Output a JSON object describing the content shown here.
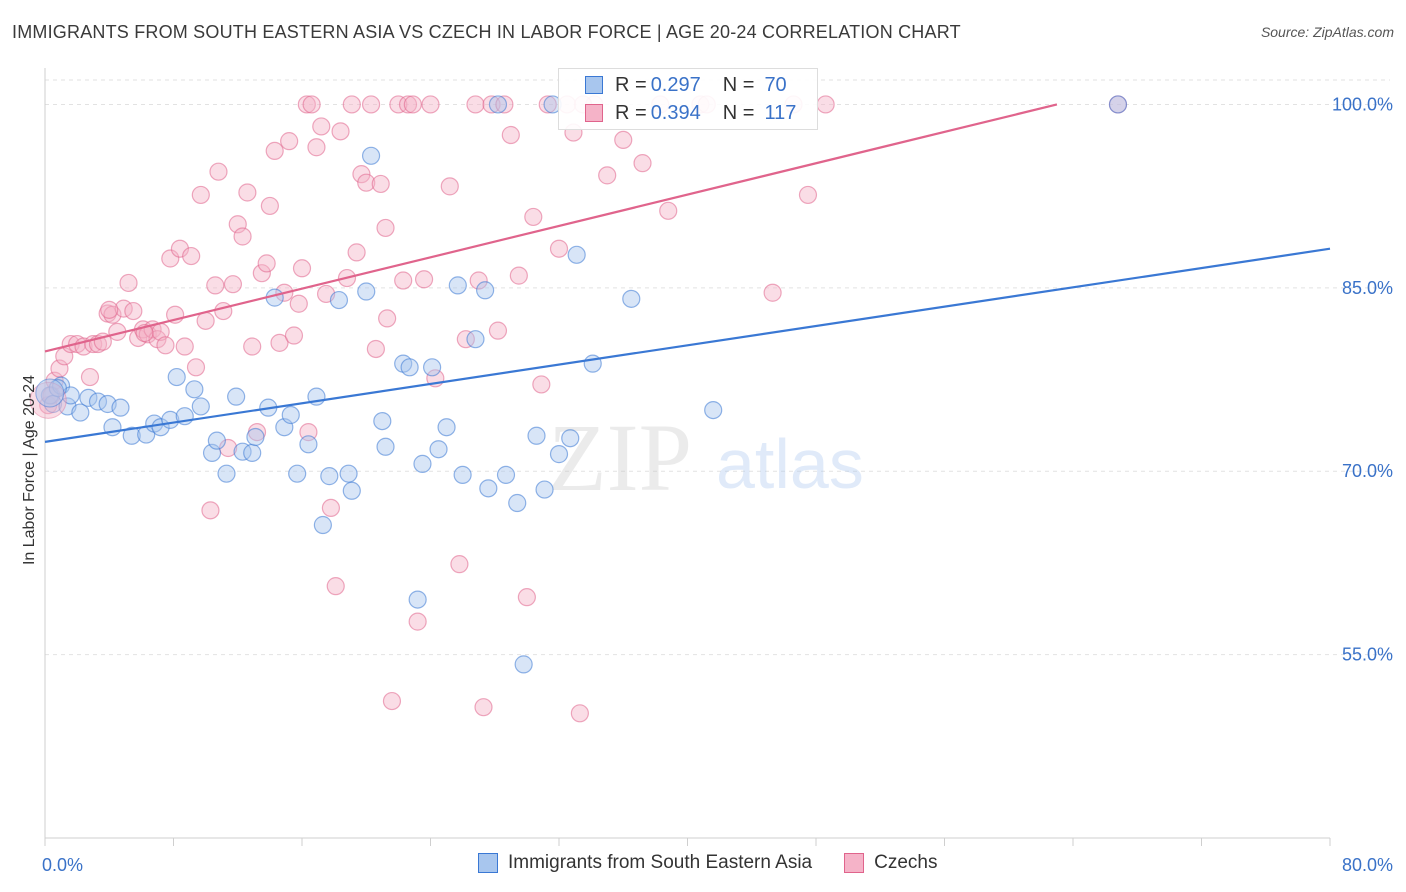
{
  "header": {
    "title": "IMMIGRANTS FROM SOUTH EASTERN ASIA VS CZECH IN LABOR FORCE | AGE 20-24 CORRELATION CHART",
    "source": "Source: ZipAtlas.com"
  },
  "legend": {
    "row1": {
      "r_label": "R =",
      "r_value": "0.297",
      "n_label": "N =",
      "n_value": "70"
    },
    "row2": {
      "r_label": "R =",
      "r_value": "0.394",
      "n_label": "N =",
      "n_value": "117"
    }
  },
  "watermark": {
    "zip": "ZIP",
    "atlas": "atlas"
  },
  "colors": {
    "blue": "#3a78d4",
    "blue_fill": "#a8c6ee",
    "pink": "#e0648c",
    "pink_fill": "#f5b3c8",
    "tick_text": "#3a72c8",
    "grid": "#e2e2e2"
  },
  "chart_data": {
    "type": "scatter",
    "title": "IMMIGRANTS FROM SOUTH EASTERN ASIA VS CZECH IN LABOR FORCE | AGE 20-24 CORRELATION CHART",
    "xlabel": "",
    "ylabel": "In Labor Force | Age 20-24",
    "xlim": [
      0,
      80
    ],
    "ylim": [
      40,
      102
    ],
    "x_tick_labels": [
      "0.0%",
      "80.0%"
    ],
    "y_ticks": [
      55,
      70,
      85,
      100
    ],
    "y_tick_labels": [
      "55.0%",
      "70.0%",
      "85.0%",
      "100.0%"
    ],
    "grid": true,
    "legend_position": "bottom",
    "series": [
      {
        "name": "Immigrants from South Eastern Asia",
        "color": "#3a78d4",
        "trend": {
          "x": [
            0,
            80
          ],
          "y": [
            72.4,
            88.2
          ]
        },
        "points": [
          [
            0.3,
            76.2
          ],
          [
            0.5,
            75.5
          ],
          [
            1.0,
            77.0
          ],
          [
            1.4,
            75.3
          ],
          [
            1.6,
            76.2
          ],
          [
            2.2,
            74.8
          ],
          [
            2.7,
            76.0
          ],
          [
            3.3,
            75.7
          ],
          [
            3.9,
            75.5
          ],
          [
            4.2,
            73.6
          ],
          [
            4.7,
            75.2
          ],
          [
            5.4,
            72.9
          ],
          [
            6.3,
            73.0
          ],
          [
            6.8,
            73.9
          ],
          [
            7.2,
            73.6
          ],
          [
            7.8,
            74.2
          ],
          [
            8.2,
            77.7
          ],
          [
            8.7,
            74.5
          ],
          [
            9.3,
            76.7
          ],
          [
            9.7,
            75.3
          ],
          [
            10.4,
            71.5
          ],
          [
            10.7,
            72.5
          ],
          [
            11.3,
            69.8
          ],
          [
            11.9,
            76.1
          ],
          [
            12.3,
            71.6
          ],
          [
            12.9,
            71.5
          ],
          [
            13.1,
            72.8
          ],
          [
            13.9,
            75.2
          ],
          [
            14.3,
            84.2
          ],
          [
            14.9,
            73.6
          ],
          [
            15.3,
            74.6
          ],
          [
            15.7,
            69.8
          ],
          [
            16.4,
            72.2
          ],
          [
            16.9,
            76.1
          ],
          [
            17.3,
            65.6
          ],
          [
            17.7,
            69.6
          ],
          [
            18.3,
            84.0
          ],
          [
            18.9,
            69.8
          ],
          [
            19.1,
            68.4
          ],
          [
            20.0,
            84.7
          ],
          [
            20.3,
            95.8
          ],
          [
            21.0,
            74.1
          ],
          [
            21.2,
            72.0
          ],
          [
            22.3,
            78.8
          ],
          [
            22.7,
            78.5
          ],
          [
            23.2,
            59.5
          ],
          [
            23.5,
            70.6
          ],
          [
            24.1,
            78.5
          ],
          [
            24.5,
            71.8
          ],
          [
            25.0,
            73.6
          ],
          [
            25.7,
            85.2
          ],
          [
            26.0,
            69.7
          ],
          [
            26.8,
            80.8
          ],
          [
            27.4,
            84.8
          ],
          [
            27.6,
            68.6
          ],
          [
            28.2,
            100.0
          ],
          [
            28.7,
            69.7
          ],
          [
            29.4,
            67.4
          ],
          [
            29.8,
            54.2
          ],
          [
            30.6,
            72.9
          ],
          [
            31.1,
            68.5
          ],
          [
            31.6,
            100.0
          ],
          [
            32.0,
            71.4
          ],
          [
            32.7,
            72.7
          ],
          [
            33.1,
            87.7
          ],
          [
            34.1,
            78.8
          ],
          [
            36.5,
            84.1
          ],
          [
            41.6,
            75.0
          ],
          [
            66.8,
            100.0
          ],
          [
            0.8,
            76.8
          ]
        ]
      },
      {
        "name": "Czechs",
        "color": "#e0648c",
        "trend": {
          "x": [
            0,
            63
          ],
          "y": [
            79.8,
            100.0
          ]
        },
        "points": [
          [
            0.2,
            75.4
          ],
          [
            0.6,
            77.4
          ],
          [
            0.9,
            78.4
          ],
          [
            1.2,
            79.4
          ],
          [
            1.6,
            80.4
          ],
          [
            2.0,
            80.4
          ],
          [
            2.4,
            80.2
          ],
          [
            2.8,
            77.7
          ],
          [
            3.0,
            80.4
          ],
          [
            3.3,
            80.4
          ],
          [
            3.6,
            80.6
          ],
          [
            3.9,
            82.9
          ],
          [
            4.2,
            82.8
          ],
          [
            4.5,
            81.4
          ],
          [
            4.9,
            83.3
          ],
          [
            5.2,
            85.4
          ],
          [
            5.5,
            83.1
          ],
          [
            5.8,
            80.9
          ],
          [
            6.1,
            81.6
          ],
          [
            6.4,
            81.2
          ],
          [
            6.7,
            81.6
          ],
          [
            7.0,
            80.8
          ],
          [
            7.2,
            81.4
          ],
          [
            7.5,
            80.3
          ],
          [
            7.8,
            87.4
          ],
          [
            8.1,
            82.8
          ],
          [
            8.4,
            88.2
          ],
          [
            8.7,
            80.2
          ],
          [
            9.1,
            87.6
          ],
          [
            9.4,
            78.5
          ],
          [
            9.7,
            92.6
          ],
          [
            10.0,
            82.3
          ],
          [
            10.3,
            66.8
          ],
          [
            10.6,
            85.2
          ],
          [
            10.8,
            94.5
          ],
          [
            11.1,
            83.1
          ],
          [
            11.4,
            71.9
          ],
          [
            11.7,
            85.3
          ],
          [
            12.0,
            90.2
          ],
          [
            12.3,
            89.2
          ],
          [
            12.6,
            92.8
          ],
          [
            12.9,
            80.2
          ],
          [
            13.2,
            73.2
          ],
          [
            13.5,
            86.2
          ],
          [
            13.8,
            87.0
          ],
          [
            14.0,
            91.7
          ],
          [
            14.3,
            96.2
          ],
          [
            14.6,
            80.5
          ],
          [
            14.9,
            84.6
          ],
          [
            15.2,
            97.0
          ],
          [
            15.5,
            81.1
          ],
          [
            15.8,
            83.7
          ],
          [
            16.0,
            86.6
          ],
          [
            16.3,
            100.0
          ],
          [
            16.6,
            100.0
          ],
          [
            16.9,
            96.5
          ],
          [
            17.2,
            98.2
          ],
          [
            17.5,
            84.5
          ],
          [
            17.8,
            67.0
          ],
          [
            18.1,
            60.6
          ],
          [
            18.4,
            97.8
          ],
          [
            18.8,
            85.8
          ],
          [
            19.1,
            100.0
          ],
          [
            19.4,
            87.9
          ],
          [
            19.7,
            94.3
          ],
          [
            20.0,
            93.6
          ],
          [
            20.3,
            100.0
          ],
          [
            20.6,
            80.0
          ],
          [
            20.9,
            93.5
          ],
          [
            21.2,
            89.9
          ],
          [
            21.6,
            51.2
          ],
          [
            22.0,
            100.0
          ],
          [
            22.3,
            85.6
          ],
          [
            22.6,
            100.0
          ],
          [
            22.9,
            100.0
          ],
          [
            23.2,
            57.7
          ],
          [
            23.6,
            85.7
          ],
          [
            24.0,
            100.0
          ],
          [
            24.3,
            77.6
          ],
          [
            25.2,
            93.3
          ],
          [
            25.8,
            62.4
          ],
          [
            26.2,
            80.8
          ],
          [
            26.8,
            100.0
          ],
          [
            27.3,
            50.7
          ],
          [
            27.8,
            100.0
          ],
          [
            28.2,
            81.5
          ],
          [
            28.6,
            100.0
          ],
          [
            29.0,
            97.5
          ],
          [
            29.5,
            86.0
          ],
          [
            30.0,
            59.7
          ],
          [
            30.4,
            90.8
          ],
          [
            30.9,
            77.1
          ],
          [
            31.3,
            100.0
          ],
          [
            32.0,
            88.2
          ],
          [
            32.5,
            100.0
          ],
          [
            32.9,
            97.7
          ],
          [
            33.3,
            50.2
          ],
          [
            34.2,
            100.0
          ],
          [
            35.0,
            94.2
          ],
          [
            36.0,
            97.1
          ],
          [
            37.2,
            95.2
          ],
          [
            38.3,
            100.0
          ],
          [
            38.8,
            91.3
          ],
          [
            40.8,
            100.0
          ],
          [
            41.2,
            100.0
          ],
          [
            45.3,
            84.6
          ],
          [
            46.6,
            100.0
          ],
          [
            47.5,
            92.6
          ],
          [
            48.6,
            100.0
          ],
          [
            66.8,
            100.0
          ],
          [
            0.4,
            76.2
          ],
          [
            4.0,
            83.2
          ],
          [
            6.2,
            81.3
          ],
          [
            16.4,
            73.2
          ],
          [
            21.3,
            82.5
          ],
          [
            27.0,
            85.6
          ],
          [
            33.5,
            100.0
          ]
        ]
      }
    ]
  },
  "bottom_legend": {
    "item1": "Immigrants from South Eastern Asia",
    "item2": "Czechs"
  }
}
